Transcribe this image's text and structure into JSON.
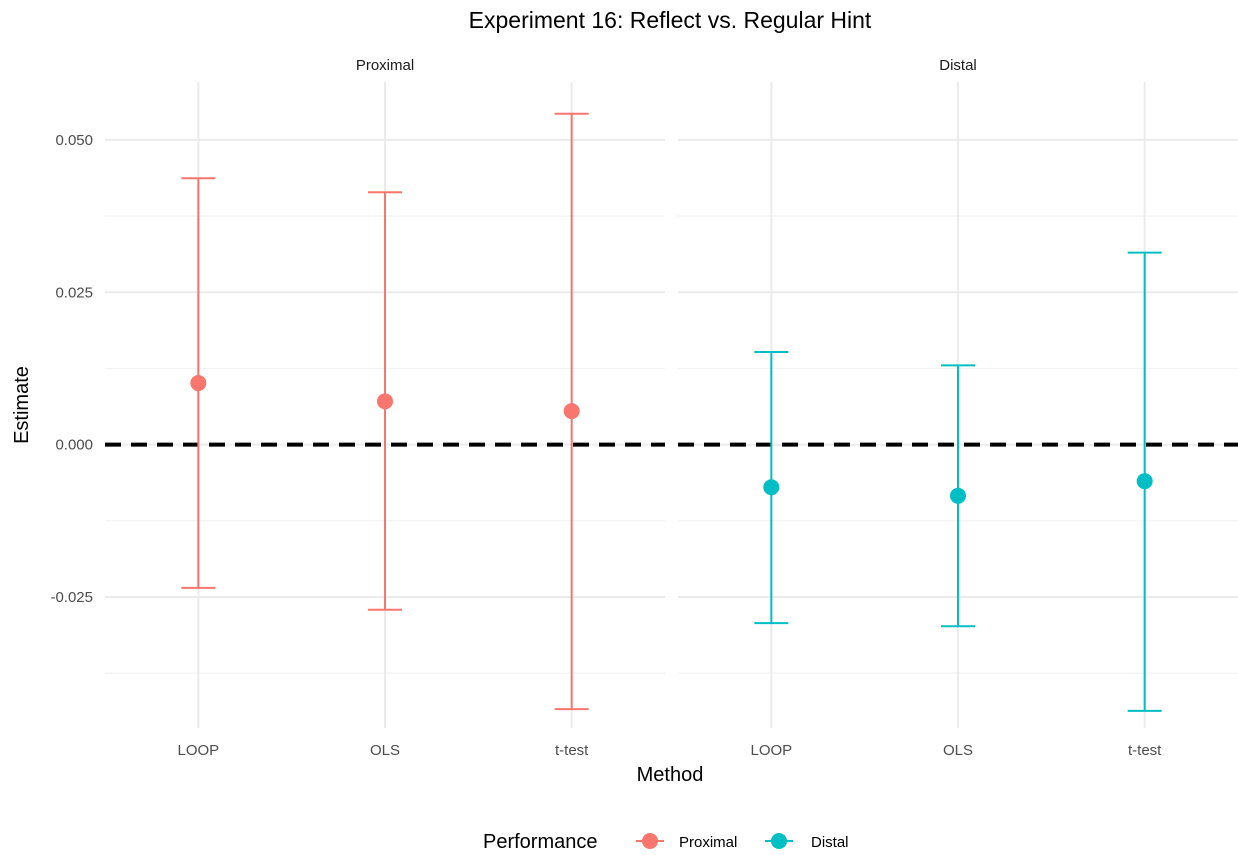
{
  "chart_data": {
    "type": "errorbar",
    "title": "Experiment 16: Reflect vs. Regular Hint",
    "xlabel": "Method",
    "ylabel": "Estimate",
    "categories": [
      "LOOP",
      "OLS",
      "t-test"
    ],
    "ylim": [
      -0.0465,
      0.0595
    ],
    "y_ticks": [
      0.05,
      0.025,
      0.0,
      -0.025
    ],
    "y_tick_labels": [
      "0.050",
      "0.025",
      "0.000",
      "-0.025"
    ],
    "reference_line": {
      "y": 0,
      "style": "dashed",
      "color": "#000000"
    },
    "grid": true,
    "legend": {
      "title": "Performance",
      "position": "bottom",
      "entries": [
        "Proximal",
        "Distal"
      ]
    },
    "panels": [
      {
        "name": "Proximal",
        "color": "#F8766D",
        "points": [
          {
            "method": "LOOP",
            "estimate": 0.0101,
            "lower": -0.0235,
            "upper": 0.0437
          },
          {
            "method": "OLS",
            "estimate": 0.0071,
            "lower": -0.0271,
            "upper": 0.0414
          },
          {
            "method": "t-test",
            "estimate": 0.0055,
            "lower": -0.0434,
            "upper": 0.0543
          }
        ]
      },
      {
        "name": "Distal",
        "color": "#00BFC4",
        "points": [
          {
            "method": "LOOP",
            "estimate": -0.007,
            "lower": -0.0293,
            "upper": 0.0152
          },
          {
            "method": "OLS",
            "estimate": -0.0084,
            "lower": -0.0298,
            "upper": 0.013
          },
          {
            "method": "t-test",
            "estimate": -0.006,
            "lower": -0.0437,
            "upper": 0.0315
          }
        ]
      }
    ]
  }
}
